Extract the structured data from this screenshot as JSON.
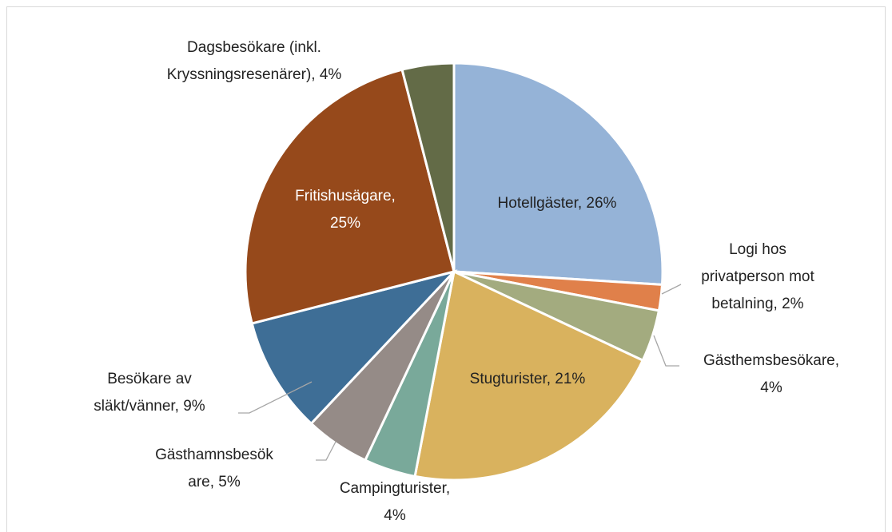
{
  "chart_data": {
    "type": "pie",
    "values": [
      26,
      2,
      4,
      21,
      4,
      5,
      9,
      25,
      4
    ],
    "value_labels": [
      [
        "Hotellgäster, 26%"
      ],
      [
        "Logi hos",
        "privatperson mot",
        "betalning, 2%"
      ],
      [
        "Gästhemsbesökare,",
        "4%"
      ],
      [
        "Stugturister, 21%"
      ],
      [
        "Campingturister,",
        "4%"
      ],
      [
        "Gästhamnsbesök",
        "are, 5%"
      ],
      [
        "Besökare av",
        "släkt/vänner, 9%"
      ],
      [
        "Fritishusägare,",
        "25%"
      ],
      [
        "Dagsbesökare (inkl.",
        "Kryssningsresenärer), 4%"
      ]
    ],
    "colors": [
      "#95b3d7",
      "#e0804a",
      "#a3ab7f",
      "#d9b25e",
      "#79a99a",
      "#958b87",
      "#3e6e96",
      "#96491b",
      "#636b47"
    ]
  }
}
